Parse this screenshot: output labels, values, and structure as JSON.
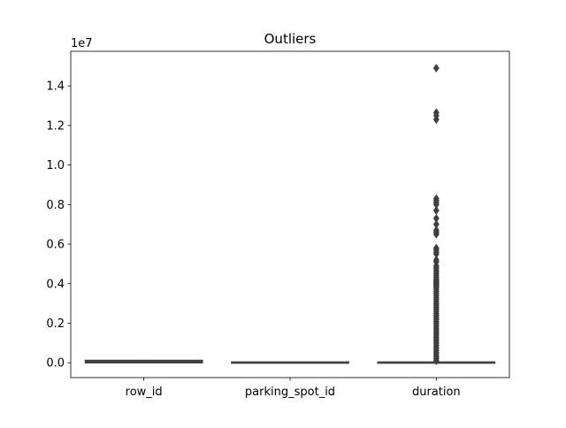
{
  "chart_data": {
    "type": "box",
    "title": "Outliers",
    "xlabel": "",
    "ylabel": "",
    "categories": [
      "row_id",
      "parking_spot_id",
      "duration"
    ],
    "y_scale_label": "1e7",
    "ylim": [
      -0.075,
      1.575
    ],
    "y_ticks": [
      0.0,
      0.2,
      0.4,
      0.6,
      0.8,
      1.0,
      1.2,
      1.4
    ],
    "y_tick_labels": [
      "0.0",
      "0.2",
      "0.4",
      "0.6",
      "0.8",
      "1.0",
      "1.2",
      "1.4"
    ],
    "grid": false,
    "colors": {
      "box_fill": "#3a3a3a",
      "line": "#3f3f3f",
      "outlier": "#3f3f3f",
      "axis": "#000000"
    },
    "series": [
      {
        "category": "row_id",
        "whisker_low": 0.0,
        "q1": 0.0,
        "median": 0.005,
        "q3": 0.012,
        "whisker_high": 0.015,
        "outliers": []
      },
      {
        "category": "parking_spot_id",
        "whisker_low": 0.0,
        "q1": 0.0,
        "median": 0.0,
        "q3": 0.002,
        "whisker_high": 0.003,
        "outliers": []
      },
      {
        "category": "duration",
        "whisker_low": 0.0,
        "q1": 0.0,
        "median": 0.0,
        "q3": 0.002,
        "whisker_high": 0.004,
        "outliers": [
          1.49,
          1.265,
          1.25,
          1.23,
          0.83,
          0.82,
          0.81,
          0.8,
          0.77,
          0.73,
          0.7,
          0.67,
          0.66,
          0.65,
          0.58,
          0.57,
          0.56,
          0.55,
          0.52,
          0.51,
          0.49,
          0.48,
          0.47,
          0.46,
          0.45,
          0.44,
          0.43,
          0.42,
          0.415,
          0.41,
          0.405,
          0.4,
          0.395,
          0.39,
          0.385,
          0.38,
          0.37,
          0.36,
          0.35,
          0.34,
          0.33,
          0.32,
          0.31,
          0.3,
          0.29,
          0.28,
          0.27,
          0.26,
          0.25,
          0.24,
          0.23,
          0.22,
          0.21,
          0.2,
          0.19,
          0.18,
          0.17,
          0.16,
          0.15,
          0.14,
          0.13,
          0.12,
          0.11,
          0.1,
          0.09,
          0.08,
          0.07,
          0.06,
          0.05,
          0.04,
          0.03,
          0.02,
          0.01
        ]
      }
    ]
  }
}
